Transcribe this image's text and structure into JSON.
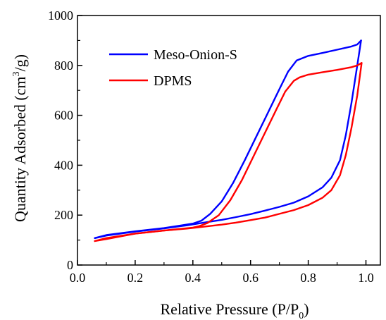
{
  "chart_data": {
    "type": "line",
    "title": "",
    "xlabel_main": "Relative Pressure (P/P",
    "xlabel_sub": "0",
    "xlabel_close": ")",
    "ylabel_main": "Quantity Adsorbed (cm",
    "ylabel_sup": "3",
    "ylabel_close": "/g)",
    "xlim": [
      0.0,
      1.05
    ],
    "ylim": [
      0,
      1000
    ],
    "xticks": [
      0.0,
      0.2,
      0.4,
      0.6,
      0.8,
      1.0
    ],
    "xtick_labels": [
      "0.0",
      "0.2",
      "0.4",
      "0.6",
      "0.8",
      "1.0"
    ],
    "yticks": [
      0,
      200,
      400,
      600,
      800,
      1000
    ],
    "ytick_labels": [
      "0",
      "200",
      "400",
      "600",
      "800",
      "1000"
    ],
    "grid": false,
    "legend_position": "top-left",
    "series": [
      {
        "name": "Meso-Onion-S",
        "color": "#0000ff",
        "adsorption": [
          [
            0.06,
            108
          ],
          [
            0.1,
            118
          ],
          [
            0.2,
            134
          ],
          [
            0.3,
            147
          ],
          [
            0.38,
            159
          ],
          [
            0.45,
            172
          ],
          [
            0.5,
            181
          ],
          [
            0.55,
            192
          ],
          [
            0.6,
            204
          ],
          [
            0.65,
            218
          ],
          [
            0.7,
            233
          ],
          [
            0.75,
            250
          ],
          [
            0.8,
            275
          ],
          [
            0.85,
            312
          ],
          [
            0.88,
            350
          ],
          [
            0.91,
            420
          ],
          [
            0.93,
            520
          ],
          [
            0.95,
            650
          ],
          [
            0.97,
            800
          ],
          [
            0.983,
            900
          ]
        ],
        "desorption": [
          [
            0.983,
            900
          ],
          [
            0.97,
            884
          ],
          [
            0.95,
            876
          ],
          [
            0.9,
            863
          ],
          [
            0.85,
            850
          ],
          [
            0.8,
            838
          ],
          [
            0.76,
            820
          ],
          [
            0.73,
            775
          ],
          [
            0.7,
            705
          ],
          [
            0.66,
            610
          ],
          [
            0.62,
            515
          ],
          [
            0.58,
            420
          ],
          [
            0.54,
            330
          ],
          [
            0.5,
            255
          ],
          [
            0.46,
            205
          ],
          [
            0.43,
            178
          ],
          [
            0.4,
            166
          ],
          [
            0.35,
            157
          ],
          [
            0.3,
            148
          ],
          [
            0.2,
            135
          ],
          [
            0.1,
            120
          ],
          [
            0.06,
            108
          ]
        ]
      },
      {
        "name": "DPMS",
        "color": "#ff0000",
        "adsorption": [
          [
            0.06,
            96
          ],
          [
            0.1,
            108
          ],
          [
            0.2,
            126
          ],
          [
            0.3,
            138
          ],
          [
            0.38,
            146
          ],
          [
            0.45,
            155
          ],
          [
            0.5,
            162
          ],
          [
            0.55,
            170
          ],
          [
            0.6,
            180
          ],
          [
            0.65,
            190
          ],
          [
            0.7,
            205
          ],
          [
            0.75,
            220
          ],
          [
            0.8,
            240
          ],
          [
            0.85,
            270
          ],
          [
            0.88,
            300
          ],
          [
            0.91,
            360
          ],
          [
            0.93,
            440
          ],
          [
            0.95,
            550
          ],
          [
            0.97,
            680
          ],
          [
            0.985,
            810
          ]
        ],
        "desorption": [
          [
            0.985,
            810
          ],
          [
            0.97,
            800
          ],
          [
            0.95,
            793
          ],
          [
            0.9,
            782
          ],
          [
            0.85,
            773
          ],
          [
            0.8,
            763
          ],
          [
            0.77,
            752
          ],
          [
            0.75,
            738
          ],
          [
            0.72,
            695
          ],
          [
            0.69,
            625
          ],
          [
            0.65,
            530
          ],
          [
            0.61,
            435
          ],
          [
            0.57,
            340
          ],
          [
            0.53,
            260
          ],
          [
            0.49,
            200
          ],
          [
            0.45,
            168
          ],
          [
            0.42,
            155
          ],
          [
            0.4,
            150
          ],
          [
            0.35,
            144
          ],
          [
            0.3,
            138
          ],
          [
            0.2,
            126
          ],
          [
            0.1,
            104
          ],
          [
            0.06,
            96
          ]
        ]
      }
    ]
  }
}
